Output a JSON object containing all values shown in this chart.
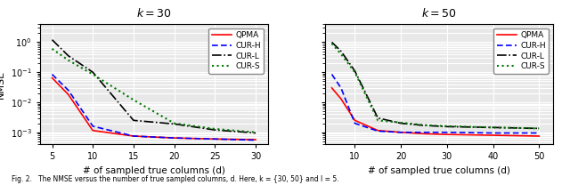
{
  "title1": "30",
  "title2": "50",
  "xlabel": "# of sampled true columns (d)",
  "ylabel": "NMSE",
  "caption": "Fig. 2.   The NMSE versus the number of true sampled columns, d. Here, k = {30, 50} and l = 5.",
  "plot1": {
    "x_QPMA": [
      5,
      7,
      10,
      15,
      20,
      25,
      30
    ],
    "y_QPMA": [
      0.065,
      0.018,
      0.00115,
      0.00075,
      0.00065,
      0.0006,
      0.00057
    ],
    "x_CURH": [
      5,
      7,
      10,
      15,
      20,
      25,
      30
    ],
    "y_CURH": [
      0.085,
      0.025,
      0.0016,
      0.00075,
      0.00065,
      0.0006,
      0.00055
    ],
    "x_CURL": [
      5,
      7,
      10,
      15,
      20,
      25,
      30
    ],
    "y_CURL": [
      1.2,
      0.35,
      0.1,
      0.0025,
      0.0019,
      0.0012,
      0.00095
    ],
    "x_CURS": [
      5,
      7,
      10,
      15,
      20,
      25,
      30
    ],
    "y_CURS": [
      0.6,
      0.25,
      0.085,
      0.012,
      0.002,
      0.0013,
      0.001
    ],
    "xlim": [
      3.5,
      31.5
    ],
    "xticks": [
      5,
      10,
      15,
      20,
      25,
      30
    ],
    "ylim": [
      0.0004,
      4.0
    ],
    "yticks": [
      0.001,
      0.01,
      0.1,
      1.0
    ]
  },
  "plot2": {
    "x_QPMA": [
      5,
      7,
      10,
      15,
      20,
      25,
      30,
      40,
      50
    ],
    "y_QPMA": [
      0.03,
      0.013,
      0.0025,
      0.00115,
      0.001,
      0.0009,
      0.00085,
      0.0008,
      0.00075
    ],
    "x_CURH": [
      5,
      7,
      10,
      15,
      20,
      25,
      30,
      40,
      50
    ],
    "y_CURH": [
      0.085,
      0.03,
      0.002,
      0.0011,
      0.001,
      0.001,
      0.001,
      0.00095,
      0.00095
    ],
    "x_CURL": [
      5,
      7,
      10,
      15,
      20,
      25,
      30,
      40,
      50
    ],
    "y_CURL": [
      1.0,
      0.5,
      0.11,
      0.003,
      0.002,
      0.0017,
      0.00155,
      0.00145,
      0.00135
    ],
    "x_CURS": [
      5,
      7,
      10,
      15,
      20,
      25,
      30,
      40,
      50
    ],
    "y_CURS": [
      0.9,
      0.4,
      0.1,
      0.0025,
      0.0021,
      0.00175,
      0.0016,
      0.00145,
      0.00135
    ],
    "xlim": [
      3.5,
      53.0
    ],
    "xticks": [
      10,
      20,
      30,
      40,
      50
    ],
    "ylim": [
      0.0004,
      4.0
    ],
    "yticks": [
      0.001,
      0.01,
      0.1,
      1.0
    ]
  },
  "colors": {
    "QPMA": "#ff0000",
    "CURH": "#0000ff",
    "CURL": "#000000",
    "CURS": "#007700"
  },
  "background_color": "#e8e8e8"
}
